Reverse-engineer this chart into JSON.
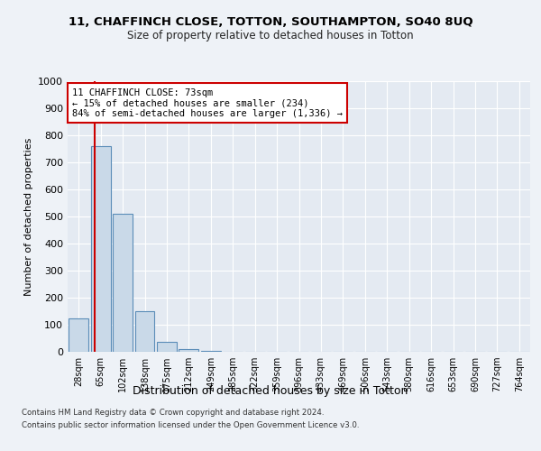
{
  "title1": "11, CHAFFINCH CLOSE, TOTTON, SOUTHAMPTON, SO40 8UQ",
  "title2": "Size of property relative to detached houses in Totton",
  "xlabel": "Distribution of detached houses by size in Totton",
  "ylabel": "Number of detached properties",
  "bin_labels": [
    "28sqm",
    "65sqm",
    "102sqm",
    "138sqm",
    "175sqm",
    "212sqm",
    "249sqm",
    "285sqm",
    "322sqm",
    "359sqm",
    "396sqm",
    "433sqm",
    "469sqm",
    "506sqm",
    "543sqm",
    "580sqm",
    "616sqm",
    "653sqm",
    "690sqm",
    "727sqm",
    "764sqm"
  ],
  "bar_heights": [
    125,
    760,
    510,
    150,
    38,
    10,
    3,
    0,
    0,
    0,
    0,
    0,
    0,
    0,
    0,
    0,
    0,
    0,
    0,
    0,
    0
  ],
  "bar_color": "#c9d9e8",
  "bar_edge_color": "#5b8db8",
  "property_line_color": "#cc0000",
  "annotation_text": "11 CHAFFINCH CLOSE: 73sqm\n← 15% of detached houses are smaller (234)\n84% of semi-detached houses are larger (1,336) →",
  "annotation_box_color": "#ffffff",
  "annotation_box_edge_color": "#cc0000",
  "ylim": [
    0,
    1000
  ],
  "yticks": [
    0,
    100,
    200,
    300,
    400,
    500,
    600,
    700,
    800,
    900,
    1000
  ],
  "footer1": "Contains HM Land Registry data © Crown copyright and database right 2024.",
  "footer2": "Contains public sector information licensed under the Open Government Licence v3.0.",
  "bg_color": "#eef2f7",
  "plot_bg_color": "#e4eaf2"
}
